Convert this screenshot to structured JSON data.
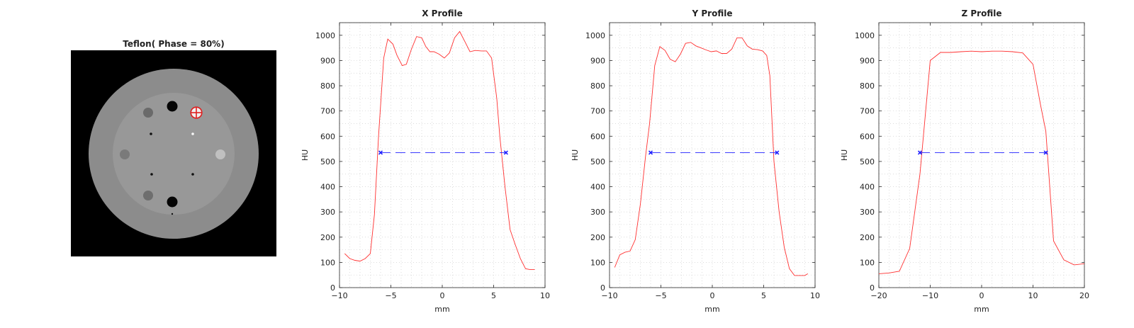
{
  "phantom": {
    "title": "Teflon( Phase = 80%)",
    "colors": {
      "background": "#000000",
      "outer_ring": "#8c8c8c",
      "inner_disc": "#989898",
      "marker": "#e02020"
    }
  },
  "chart_data": [
    {
      "type": "line",
      "title": "X Profile",
      "xlabel": "mm",
      "ylabel": "HU",
      "xlim": [
        -10,
        10
      ],
      "ylim": [
        0,
        1050
      ],
      "xticks": [
        "−10",
        "−5",
        "0",
        "5",
        "10"
      ],
      "xtick_values": [
        -10,
        -5,
        0,
        5,
        10
      ],
      "yticks": [
        "0",
        "100",
        "200",
        "300",
        "400",
        "500",
        "600",
        "700",
        "800",
        "900",
        "1000"
      ],
      "ytick_values": [
        0,
        100,
        200,
        300,
        400,
        500,
        600,
        700,
        800,
        900,
        1000
      ],
      "grid": true,
      "series": [
        {
          "color": "#ff3030",
          "x": [
            -9.5,
            -9.0,
            -8.5,
            -8.0,
            -7.5,
            -7.0,
            -6.6,
            -6.2,
            -5.7,
            -5.3,
            -4.8,
            -4.4,
            -3.9,
            -3.5,
            -3.0,
            -2.5,
            -2.0,
            -1.6,
            -1.2,
            -0.8,
            -0.3,
            0.2,
            0.7,
            1.2,
            1.7,
            2.2,
            2.7,
            3.2,
            3.8,
            4.3,
            4.8,
            5.3,
            5.6,
            6.1,
            6.6,
            7.1,
            7.6,
            8.1,
            8.5,
            9.0
          ],
          "y": [
            135,
            115,
            108,
            105,
            115,
            135,
            290,
            600,
            910,
            985,
            965,
            920,
            880,
            885,
            945,
            995,
            990,
            955,
            935,
            935,
            925,
            910,
            930,
            990,
            1015,
            975,
            935,
            940,
            938,
            938,
            910,
            750,
            600,
            400,
            230,
            170,
            115,
            75,
            72,
            72
          ]
        },
        {
          "color": "#2020ff",
          "dashed": true,
          "x": [
            -6.0,
            6.2
          ],
          "y": [
            535,
            535
          ]
        }
      ]
    },
    {
      "type": "line",
      "title": "Y Profile",
      "xlabel": "mm",
      "ylabel": "HU",
      "xlim": [
        -10,
        10
      ],
      "ylim": [
        0,
        1050
      ],
      "xticks": [
        "−10",
        "−5",
        "0",
        "5",
        "10"
      ],
      "xtick_values": [
        -10,
        -5,
        0,
        5,
        10
      ],
      "yticks": [
        "0",
        "100",
        "200",
        "300",
        "400",
        "500",
        "600",
        "700",
        "800",
        "900",
        "1000"
      ],
      "ytick_values": [
        0,
        100,
        200,
        300,
        400,
        500,
        600,
        700,
        800,
        900,
        1000
      ],
      "grid": true,
      "series": [
        {
          "color": "#ff3030",
          "x": [
            -9.5,
            -9.0,
            -8.5,
            -8.0,
            -7.5,
            -7.0,
            -6.5,
            -6.1,
            -5.6,
            -5.1,
            -4.6,
            -4.1,
            -3.6,
            -3.1,
            -2.6,
            -2.1,
            -1.6,
            -1.1,
            -0.6,
            -0.1,
            0.4,
            0.9,
            1.4,
            1.9,
            2.4,
            2.9,
            3.4,
            3.9,
            4.4,
            4.9,
            5.3,
            5.6,
            6.0,
            6.5,
            7.0,
            7.5,
            8.0,
            8.5,
            9.0,
            9.3
          ],
          "y": [
            80,
            130,
            140,
            145,
            190,
            330,
            520,
            650,
            880,
            955,
            940,
            905,
            895,
            925,
            968,
            972,
            958,
            950,
            942,
            935,
            938,
            928,
            928,
            945,
            990,
            990,
            958,
            945,
            943,
            938,
            920,
            840,
            500,
            300,
            160,
            75,
            48,
            48,
            48,
            55
          ]
        },
        {
          "color": "#2020ff",
          "dashed": true,
          "x": [
            -6.0,
            6.3
          ],
          "y": [
            535,
            535
          ]
        }
      ]
    },
    {
      "type": "line",
      "title": "Z Profile",
      "xlabel": "mm",
      "ylabel": "HU",
      "xlim": [
        -20,
        20
      ],
      "ylim": [
        0,
        1050
      ],
      "xticks": [
        "−20",
        "−10",
        "0",
        "10",
        "20"
      ],
      "xtick_values": [
        -20,
        -10,
        0,
        10,
        20
      ],
      "yticks": [
        "0",
        "100",
        "200",
        "300",
        "400",
        "500",
        "600",
        "700",
        "800",
        "900",
        "1000"
      ],
      "ytick_values": [
        0,
        100,
        200,
        300,
        400,
        500,
        600,
        700,
        800,
        900,
        1000
      ],
      "grid": true,
      "series": [
        {
          "color": "#ff3030",
          "x": [
            -20,
            -18,
            -16,
            -14,
            -12,
            -10,
            -8,
            -6,
            -4,
            -2,
            0,
            2,
            4,
            6,
            8,
            10,
            11.5,
            12.5,
            14,
            16,
            18,
            20
          ],
          "y": [
            55,
            58,
            65,
            155,
            450,
            900,
            932,
            932,
            935,
            937,
            935,
            937,
            937,
            935,
            930,
            885,
            720,
            620,
            185,
            110,
            90,
            95
          ]
        },
        {
          "color": "#2020ff",
          "dashed": true,
          "x": [
            -12.0,
            12.5
          ],
          "y": [
            535,
            535
          ]
        }
      ]
    }
  ]
}
